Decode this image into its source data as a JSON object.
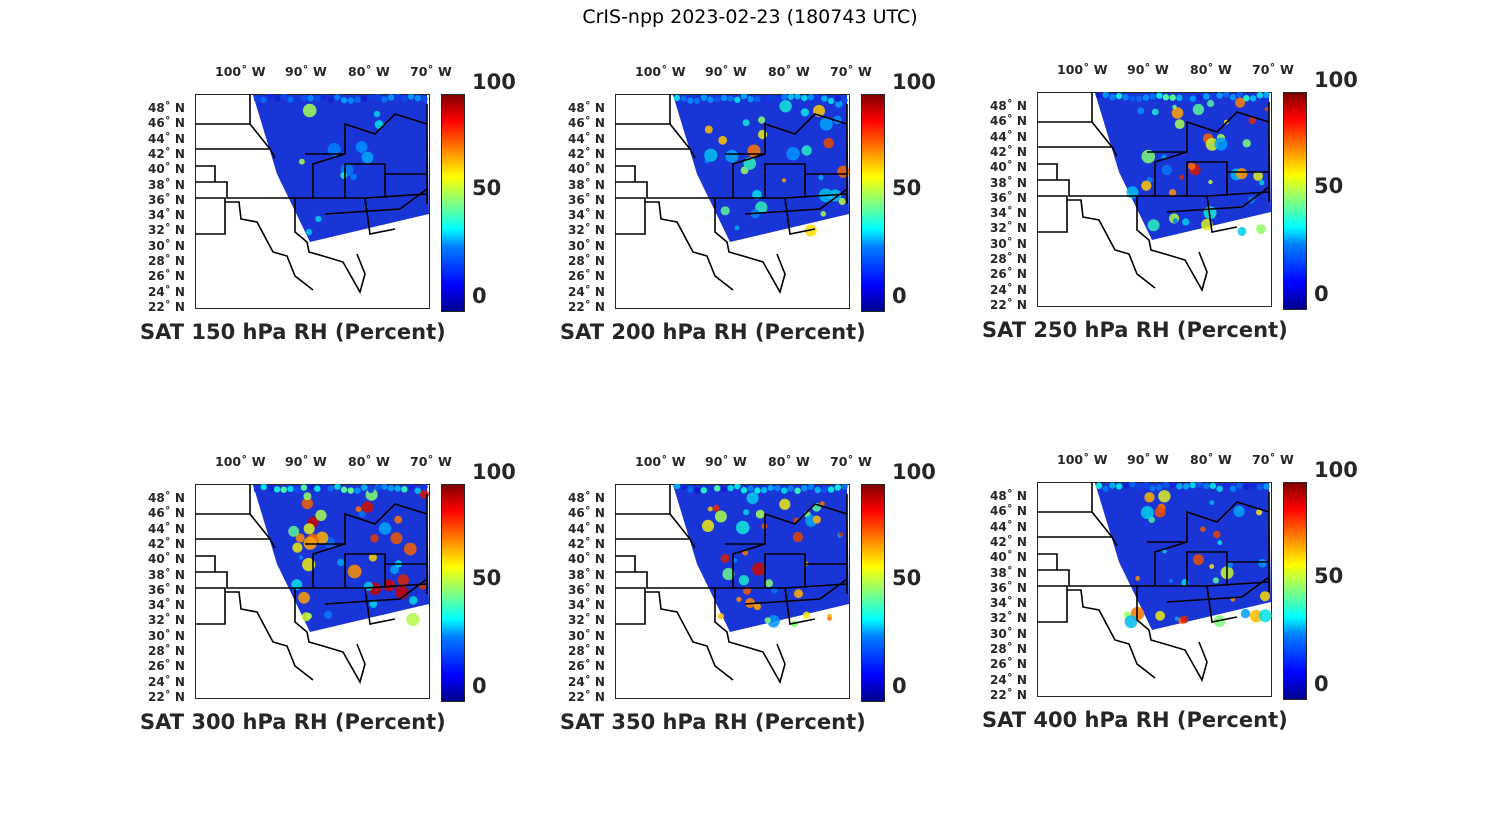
{
  "figure": {
    "title": "CrIS-npp 2023-02-23 (180743 UTC)"
  },
  "axes": {
    "lon_labels": [
      "100˚ W",
      "90˚ W",
      "80˚ W",
      "70˚ W"
    ],
    "lat_labels": [
      "48˚ N",
      "46˚ N",
      "44˚ N",
      "42˚ N",
      "40˚ N",
      "38˚ N",
      "36˚ N",
      "34˚ N",
      "32˚ N",
      "30˚ N",
      "28˚ N",
      "26˚ N",
      "24˚ N",
      "22˚ N"
    ]
  },
  "colorbar": {
    "max_label": "100",
    "mid_label": "50",
    "min_label": "0"
  },
  "panels": [
    {
      "title": "SAT 150 hPa RH (Percent)"
    },
    {
      "title": "SAT 200 hPa RH (Percent)"
    },
    {
      "title": "SAT 250 hPa RH (Percent)"
    },
    {
      "title": "SAT 300 hPa RH (Percent)"
    },
    {
      "title": "SAT 350 hPa RH (Percent)"
    },
    {
      "title": "SAT 400 hPa RH (Percent)"
    }
  ],
  "colors": {
    "dry": "#1a35d6",
    "frame": "#262626",
    "coast": "#000000"
  }
}
